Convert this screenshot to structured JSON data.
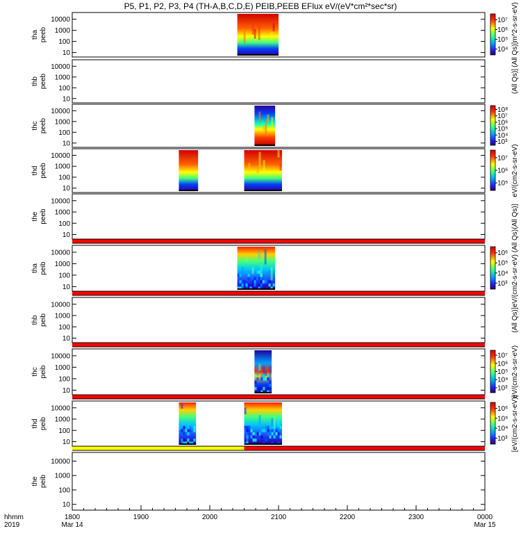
{
  "title": "P5, P1, P2, P3, P4 (TH-A,B,C,D,E) PEIB,PEEB EFlux eV/(eV*cm²*sec*sr)",
  "colors": {
    "frame": "#000000",
    "flag_red": "#ff0000",
    "flag_yellow": "#ffff00"
  },
  "chart_data": {
    "type": "heatmap",
    "x_axis": {
      "ticks": [
        "1800",
        "1900",
        "2000",
        "2100",
        "2200",
        "2300",
        "0000"
      ],
      "tick_hours": [
        18,
        19,
        20,
        21,
        22,
        23,
        24
      ],
      "range_hours": [
        18,
        24
      ],
      "row_label_1": "hhmm",
      "row_label_2": "2019",
      "date_start": "Mar 14",
      "date_end": "Mar 15"
    },
    "y_axis": {
      "scale": "log",
      "ticks": [
        "10",
        "100",
        "1000",
        "10000"
      ]
    },
    "panels": [
      {
        "id": "tha-peeb",
        "label1": "tha",
        "label2": "peeb",
        "colorbar": [
          "10⁷",
          "10⁶",
          "10⁵",
          "10⁴"
        ],
        "colorbar_title": "(All Qs)]m^2-s-sr-eV)",
        "data_intervals_hours": [
          [
            20.4,
            21.0
          ]
        ],
        "flag_bar": null
      },
      {
        "id": "thb-peeb",
        "label1": "thb",
        "label2": "peeb",
        "colorbar": [],
        "colorbar_title": "(All Qs)]",
        "data_intervals_hours": [],
        "flag_bar": null
      },
      {
        "id": "thc-peeb",
        "label1": "thc",
        "label2": "peeb",
        "colorbar": [
          "10⁸",
          "10⁷",
          "10⁶",
          "10⁵",
          "10⁴",
          "10³"
        ],
        "colorbar_title": "",
        "data_intervals_hours": [
          [
            20.65,
            20.95
          ]
        ],
        "flag_bar": null
      },
      {
        "id": "thd-peeb",
        "label1": "thd",
        "label2": "peeb",
        "colorbar": [
          "10⁷",
          "10⁶",
          "10⁵"
        ],
        "colorbar_title": "eV/(cm2-s-sr-eV)",
        "data_intervals_hours": [
          [
            19.55,
            19.83
          ],
          [
            20.5,
            21.05
          ]
        ],
        "flag_bar": null
      },
      {
        "id": "the-peeb",
        "label1": "the",
        "label2": "peeb",
        "colorbar": [],
        "colorbar_title": "(All Qs)]",
        "data_intervals_hours": [],
        "flag_bar": "red"
      },
      {
        "id": "tha-peib",
        "label1": "tha",
        "label2": "peib",
        "colorbar": [
          "10⁶",
          "10⁵",
          "10⁴",
          "10³"
        ],
        "colorbar_title": "eV/(cm2-s-sr-eV) (All Qs)",
        "data_intervals_hours": [
          [
            20.4,
            20.95
          ]
        ],
        "flag_bar": "red"
      },
      {
        "id": "thb-peib",
        "label1": "thb",
        "label2": "peib",
        "colorbar": [],
        "colorbar_title": "(All Qs)]",
        "data_intervals_hours": [],
        "flag_bar": "red"
      },
      {
        "id": "thc-peib",
        "label1": "thc",
        "label2": "peib",
        "colorbar": [
          "10⁷",
          "10⁶",
          "10⁵",
          "10⁴",
          "10³"
        ],
        "colorbar_title": "eV/(cm2-s-sr-eV)",
        "data_intervals_hours": [
          [
            20.65,
            20.9
          ]
        ],
        "flag_bar": "red"
      },
      {
        "id": "thd-peib",
        "label1": "thd",
        "label2": "peib",
        "colorbar": [
          "10⁶",
          "10⁵",
          "10⁴",
          "10³"
        ],
        "colorbar_title": "[eV/(cm2-s-sr-eV)]",
        "data_intervals_hours": [
          [
            19.55,
            19.8
          ],
          [
            20.5,
            21.05
          ]
        ],
        "flag_bar": "yellow-red"
      },
      {
        "id": "the-peib",
        "label1": "the",
        "label2": "peib",
        "colorbar": [],
        "colorbar_title": "",
        "data_intervals_hours": [],
        "flag_bar": null
      }
    ]
  }
}
